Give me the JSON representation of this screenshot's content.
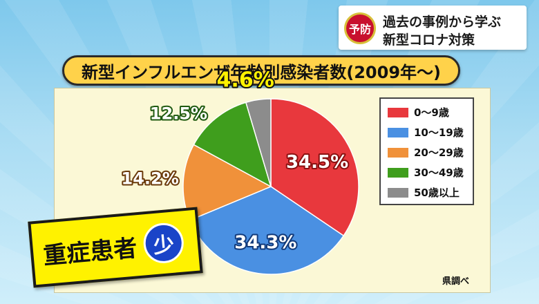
{
  "header": {
    "badge": "予防",
    "line1": "過去の事例から学ぶ",
    "line2": "新型コロナ対策"
  },
  "title": "新型インフルエンザ年齢別感染者数(2009年〜)",
  "source": "県調べ",
  "callout": {
    "text": "重症患者",
    "circle": "少"
  },
  "chart_data": {
    "type": "pie",
    "title": "新型インフルエンザ年齢別感染者数(2009年〜)",
    "categories": [
      "0〜9歳",
      "10〜19歳",
      "20〜29歳",
      "30〜49歳",
      "50歳以上"
    ],
    "values": [
      34.5,
      34.3,
      14.2,
      12.5,
      4.6
    ],
    "labels": [
      "34.5%",
      "34.3%",
      "14.2%",
      "12.5%",
      "4.6%"
    ],
    "colors": [
      "#e8383d",
      "#4a90e2",
      "#f0913a",
      "#3f9e1d",
      "#8c8c8c"
    ],
    "legend_position": "right"
  }
}
